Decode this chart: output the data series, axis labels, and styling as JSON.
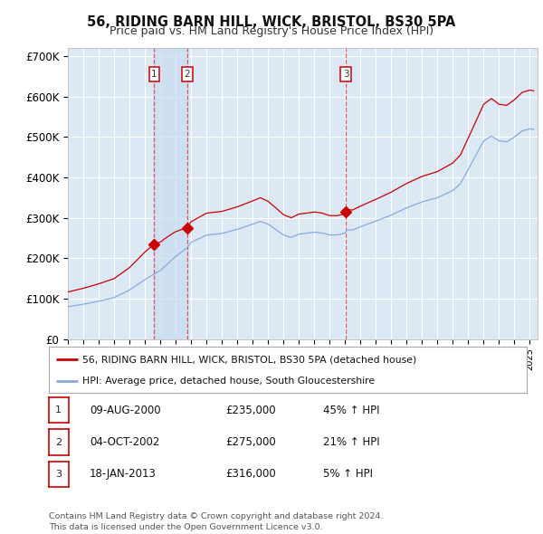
{
  "title": "56, RIDING BARN HILL, WICK, BRISTOL, BS30 5PA",
  "subtitle": "Price paid vs. HM Land Registry's House Price Index (HPI)",
  "ylim": [
    0,
    720000
  ],
  "yticks": [
    0,
    100000,
    200000,
    300000,
    400000,
    500000,
    600000,
    700000
  ],
  "ytick_labels": [
    "£0",
    "£100K",
    "£200K",
    "£300K",
    "£400K",
    "£500K",
    "£600K",
    "£700K"
  ],
  "background_color": "#ffffff",
  "plot_bg_color": "#dce9f5",
  "grid_color": "#ffffff",
  "transactions": [
    {
      "date_num": 2000.608,
      "price": 235000,
      "label": "1"
    },
    {
      "date_num": 2002.753,
      "price": 275000,
      "label": "2"
    },
    {
      "date_num": 2013.046,
      "price": 316000,
      "label": "3"
    }
  ],
  "transaction_color": "#cc0000",
  "hpi_color": "#aaccee",
  "legend_line_red": "#cc0000",
  "legend_line_blue": "#88aadd",
  "legend_entries": [
    "56, RIDING BARN HILL, WICK, BRISTOL, BS30 5PA (detached house)",
    "HPI: Average price, detached house, South Gloucestershire"
  ],
  "table_rows": [
    [
      "1",
      "09-AUG-2000",
      "£235,000",
      "45% ↑ HPI"
    ],
    [
      "2",
      "04-OCT-2002",
      "£275,000",
      "21% ↑ HPI"
    ],
    [
      "3",
      "18-JAN-2013",
      "£316,000",
      "5% ↑ HPI"
    ]
  ],
  "footer": "Contains HM Land Registry data © Crown copyright and database right 2024.\nThis data is licensed under the Open Government Licence v3.0.",
  "xmin": 1995.0,
  "xmax": 2025.5,
  "ownership_band_color": "#c8dcf0",
  "ownership_band_alpha": 0.7
}
